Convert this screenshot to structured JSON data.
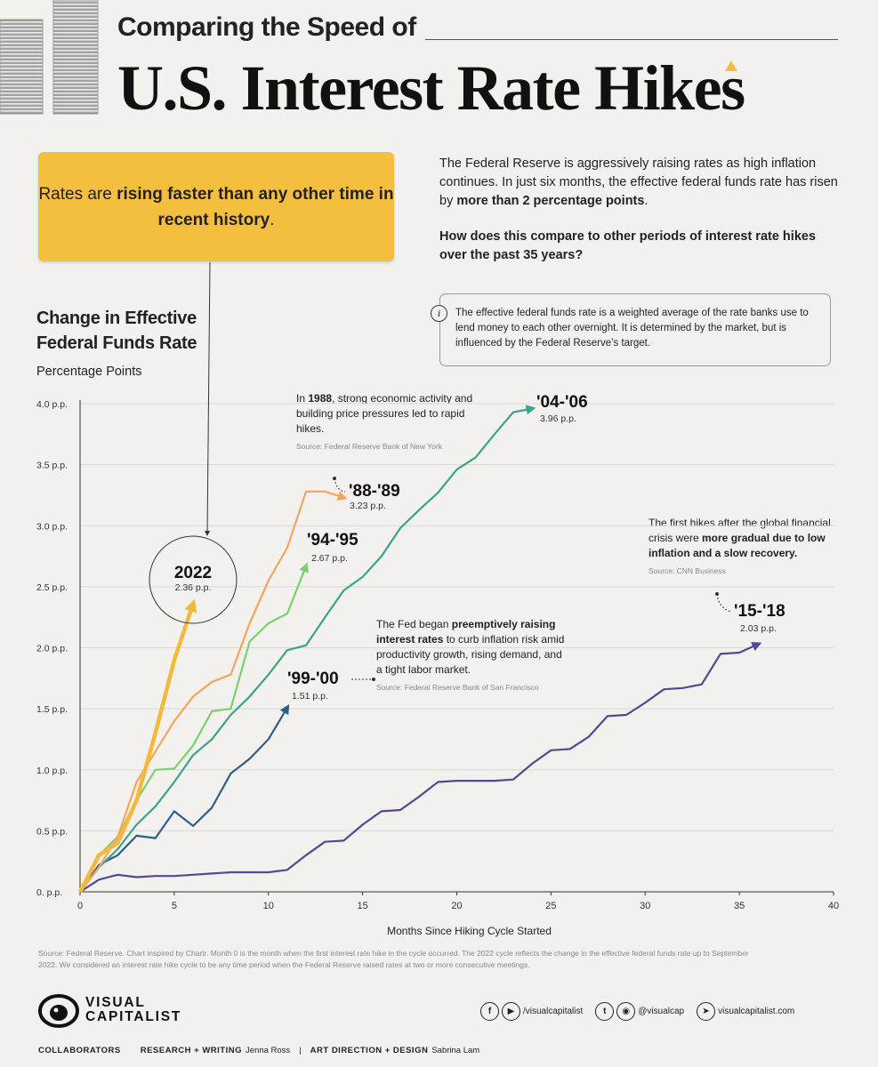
{
  "header": {
    "subtitle": "Comparing the Speed of",
    "title": "U.S. Interest Rate Hikes"
  },
  "callout": {
    "part1": "Rates are ",
    "bold": "rising faster than any other time in recent history",
    "part2": "."
  },
  "intro": {
    "text1": "The Federal Reserve is aggressively raising rates as high inflation continues. In just six months, the effective federal funds rate has risen by ",
    "bold": "more than 2 percentage points",
    "text2": ".",
    "question": "How does this compare to other periods of interest rate hikes over the past 35 years?"
  },
  "info": {
    "icon": "i",
    "text": "The effective federal funds rate is a weighted average of the rate banks use to lend money to each other overnight. It is determined by the market, but is influenced by the Federal Reserve’s target."
  },
  "chart_data": {
    "type": "line",
    "title": "Change in Effective Federal Funds Rate",
    "ylabel": "Percentage Points",
    "xlabel": "Months Since Hiking Cycle Started",
    "xlim": [
      0,
      40
    ],
    "ylim": [
      0,
      4
    ],
    "x_ticks": [
      "0",
      "5",
      "10",
      "15",
      "20",
      "25",
      "30",
      "35",
      "40"
    ],
    "y_ticks": [
      "0. p.p.",
      "0.5 p.p.",
      "1.0 p.p.",
      "1.5 p.p.",
      "2.0 p.p.",
      "2.5 p.p.",
      "3.0 p.p.",
      "3.5 p.p.",
      "4.0 p.p."
    ],
    "grid": true,
    "series": [
      {
        "name": "2022",
        "value_label": "2.36 p.p.",
        "color": "#f2b93b",
        "x": [
          0,
          1,
          2,
          3,
          4,
          5,
          6
        ],
        "y": [
          0,
          0.3,
          0.4,
          0.75,
          1.3,
          1.9,
          2.36
        ]
      },
      {
        "name": "'88-'89",
        "value_label": "3.23 p.p.",
        "color": "#f5a55c",
        "x": [
          0,
          1,
          2,
          3,
          4,
          5,
          6,
          7,
          8,
          9,
          10,
          11,
          12,
          13,
          14
        ],
        "y": [
          0,
          0.2,
          0.45,
          0.9,
          1.15,
          1.4,
          1.6,
          1.72,
          1.78,
          2.2,
          2.55,
          2.82,
          3.28,
          3.28,
          3.23
        ]
      },
      {
        "name": "'94-'95",
        "value_label": "2.67 p.p.",
        "color": "#7ccf6f",
        "x": [
          0,
          1,
          2,
          3,
          4,
          5,
          6,
          7,
          8,
          9,
          10,
          11,
          12
        ],
        "y": [
          0,
          0.3,
          0.45,
          0.75,
          1.0,
          1.01,
          1.2,
          1.48,
          1.5,
          2.05,
          2.2,
          2.28,
          2.67
        ]
      },
      {
        "name": "'04-'06",
        "value_label": "3.96 p.p.",
        "color": "#3aa58a",
        "x": [
          0,
          1,
          2,
          3,
          4,
          5,
          6,
          7,
          8,
          9,
          10,
          11,
          12,
          13,
          14,
          15,
          16,
          17,
          18,
          19,
          20,
          21,
          22,
          23,
          24
        ],
        "y": [
          0,
          0.2,
          0.35,
          0.55,
          0.7,
          0.9,
          1.12,
          1.25,
          1.45,
          1.6,
          1.78,
          1.98,
          2.02,
          2.25,
          2.47,
          2.58,
          2.75,
          2.98,
          3.13,
          3.27,
          3.46,
          3.56,
          3.75,
          3.93,
          3.96
        ]
      },
      {
        "name": "'99-'00",
        "value_label": "1.51 p.p.",
        "color": "#2e5f86",
        "x": [
          0,
          1,
          2,
          3,
          4,
          5,
          6,
          7,
          8,
          9,
          10,
          11
        ],
        "y": [
          0,
          0.22,
          0.3,
          0.46,
          0.44,
          0.66,
          0.54,
          0.69,
          0.97,
          1.09,
          1.25,
          1.51
        ]
      },
      {
        "name": "'15-'18",
        "value_label": "2.03 p.p.",
        "color": "#5a4593",
        "x": [
          0,
          1,
          2,
          3,
          4,
          5,
          6,
          7,
          8,
          9,
          10,
          11,
          12,
          13,
          14,
          15,
          16,
          17,
          18,
          19,
          20,
          21,
          22,
          23,
          24,
          25,
          26,
          27,
          28,
          29,
          30,
          31,
          32,
          33,
          34,
          35,
          36
        ],
        "y": [
          0,
          0.1,
          0.14,
          0.12,
          0.13,
          0.13,
          0.14,
          0.15,
          0.16,
          0.16,
          0.16,
          0.18,
          0.3,
          0.41,
          0.42,
          0.55,
          0.66,
          0.67,
          0.78,
          0.9,
          0.91,
          0.91,
          0.91,
          0.92,
          1.05,
          1.16,
          1.17,
          1.27,
          1.44,
          1.45,
          1.55,
          1.66,
          1.67,
          1.7,
          1.95,
          1.96,
          2.03
        ]
      }
    ],
    "annotations": {
      "n1988_pre": "In ",
      "n1988_bold": "1988",
      "n1988_post": ", strong economic activity and building price pressures led to rapid hikes.",
      "n1988_src": "Source: Federal Reserve Bank of New York",
      "n1999_pre": "The Fed began ",
      "n1999_bold": "preemptively raising interest rates",
      "n1999_post": " to curb inflation risk amid productivity growth, rising demand, and a tight labor market.",
      "n1999_src": "Source: Federal Reserve Bank of San Francisco",
      "n2015_pre": "The first hikes after the global financial crisis were ",
      "n2015_bold": "more gradual due to low inflation and a slow recovery.",
      "n2015_src": "Source: CNN Business"
    }
  },
  "footnote": "Source: Federal Reserve. Chart inspired by Chartr. Month 0 is the month when the first interest rate hike in the cycle occurred. The 2022 cycle reflects the change in the effective federal funds rate up to September 2022. We considered an interest rate hike cycle to be any time period when the Federal Reserve raised rates at two or more consecutive meetings.",
  "brand": {
    "line1": "VISUAL",
    "line2": "CAPITALIST"
  },
  "socials": {
    "handle1": "/visualcapitalist",
    "handle2": "@visualcap",
    "site": "visualcapitalist.com",
    "icons": [
      "facebook-icon",
      "youtube-icon",
      "twitter-icon",
      "instagram-icon",
      "cursor-icon"
    ]
  },
  "credits": {
    "collaborators": "COLLABORATORS",
    "research_label": "RESEARCH + WRITING",
    "research_name": "Jenna Ross",
    "sep": "|",
    "design_label": "ART DIRECTION + DESIGN",
    "design_name": "Sabrina Lam"
  },
  "colors": {
    "accent": "#f4be3f",
    "background": "#f2f1ee"
  }
}
